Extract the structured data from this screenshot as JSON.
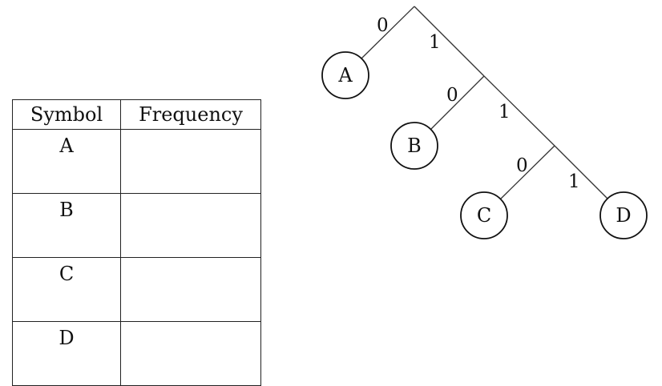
{
  "table": {
    "headers": {
      "symbol": "Symbol",
      "frequency": "Frequency"
    },
    "rows": [
      {
        "symbol": "A",
        "frequency": ""
      },
      {
        "symbol": "B",
        "frequency": ""
      },
      {
        "symbol": "C",
        "frequency": ""
      },
      {
        "symbol": "D",
        "frequency": ""
      }
    ]
  },
  "tree": {
    "nodes": {
      "a": "A",
      "b": "B",
      "c": "C",
      "d": "D"
    },
    "edges": {
      "root_left": "0",
      "root_right": "1",
      "n1_left": "0",
      "n1_right": "1",
      "n2_left": "0",
      "n2_right": "1"
    }
  }
}
